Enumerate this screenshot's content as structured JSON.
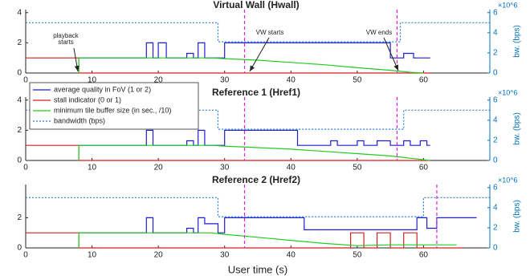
{
  "chart_data": [
    {
      "type": "line",
      "title": "Virtual Wall (Hwall)",
      "xlim": [
        0,
        70
      ],
      "xticks": [
        0,
        10,
        20,
        30,
        40,
        50,
        60
      ],
      "ylim": [
        0,
        4.2
      ],
      "yticks": [
        0,
        2,
        4
      ],
      "y2lim": [
        0,
        6300000
      ],
      "y2ticks": [
        0,
        {
          "value": 2000000,
          "label": "2"
        },
        {
          "value": 4000000,
          "label": "4"
        },
        {
          "value": 6000000,
          "label": "6"
        }
      ],
      "y2label": "bw. (bps)",
      "y2_exponent": "×10^6",
      "vlines": [
        33,
        56
      ],
      "vline_color": "#e020e0",
      "annotations": [
        {
          "lines": [
            "playback",
            "starts"
          ]
        },
        {
          "lines": [
            "VW starts"
          ]
        },
        {
          "lines": [
            "VW ends"
          ]
        }
      ],
      "series": [
        {
          "color": "#1f1fd0",
          "x": [
            8,
            18.2,
            18.2,
            19.2,
            19.2,
            20,
            20,
            21.2,
            21.2,
            24.3,
            24.3,
            25.3,
            25.3,
            26,
            26,
            27,
            27,
            30,
            30,
            55,
            55,
            57,
            57,
            58.5,
            58.5,
            61
          ],
          "values": [
            1,
            1,
            2,
            2,
            1,
            1,
            2,
            2,
            1,
            1,
            1.3,
            1.3,
            1,
            1,
            2,
            2,
            1,
            1,
            2,
            2,
            1,
            1,
            1.3,
            1.3,
            1,
            1
          ]
        },
        {
          "color": "#d42020",
          "x": [
            0,
            8,
            8,
            61
          ],
          "values": [
            1,
            1,
            0,
            0
          ]
        },
        {
          "color": "#22cc22",
          "x": [
            8,
            8,
            28,
            30,
            35,
            40,
            45,
            50,
            55,
            58,
            60
          ],
          "values": [
            0,
            1,
            1,
            0.95,
            0.85,
            0.7,
            0.55,
            0.35,
            0.18,
            0.05,
            0
          ]
        },
        {
          "color": "#2a7fd4",
          "dash": "2,2",
          "axis": "y2",
          "x": [
            0,
            29,
            29,
            56.5,
            56.5,
            70
          ],
          "values": [
            5000000,
            5000000,
            3100000,
            3100000,
            5000000,
            5000000
          ]
        }
      ]
    },
    {
      "type": "line",
      "title": "Reference 1 (Href1)",
      "xlim": [
        0,
        70
      ],
      "xticks": [
        0,
        10,
        20,
        30,
        40,
        50,
        60
      ],
      "ylim": [
        0,
        4.2
      ],
      "yticks": [
        0,
        2,
        4
      ],
      "y2lim": [
        0,
        6300000
      ],
      "y2ticks": [
        0,
        {
          "value": 2000000,
          "label": "2"
        },
        {
          "value": 4000000,
          "label": "4"
        },
        {
          "value": 6000000,
          "label": "6"
        }
      ],
      "y2label": "bw. (bps)",
      "y2_exponent": "×10^6",
      "vlines": [
        33,
        56
      ],
      "vline_color": "#e020e0",
      "legend": "upper left",
      "series": [
        {
          "name": "average quality in FoV (1 or 2)",
          "color": "#1f1fd0",
          "x": [
            8,
            18.2,
            18.2,
            19.2,
            19.2,
            24.3,
            24.3,
            25.3,
            25.3,
            26,
            26,
            27,
            27,
            30,
            30,
            41,
            41,
            46,
            46,
            47,
            47,
            50,
            50,
            51,
            51,
            53,
            53,
            55,
            55,
            57,
            57,
            58,
            58,
            59.5,
            59.5,
            60.5,
            60.5,
            61
          ],
          "values": [
            1,
            1,
            2,
            2,
            1,
            1,
            1.3,
            1.3,
            1,
            1,
            2,
            2,
            1,
            1,
            2,
            2,
            1,
            1,
            1.3,
            1.3,
            1,
            1,
            1.3,
            1.3,
            1,
            1,
            1.3,
            1.3,
            1,
            1,
            1.3,
            1.3,
            1,
            1,
            1.3,
            1.3,
            1,
            1
          ]
        },
        {
          "name": "stall indicator (0 or 1)",
          "color": "#d42020",
          "x": [
            0,
            8,
            8,
            61
          ],
          "values": [
            1,
            1,
            0,
            0
          ]
        },
        {
          "name": "minimum tile buffer size (in sec., /10)",
          "color": "#22cc22",
          "x": [
            8,
            8,
            28,
            30,
            35,
            40,
            45,
            50,
            55,
            58,
            61
          ],
          "values": [
            0,
            1,
            1,
            0.95,
            0.85,
            0.75,
            0.6,
            0.45,
            0.3,
            0.15,
            0
          ]
        },
        {
          "name": "bandwidth (bps)",
          "color": "#2a7fd4",
          "dash": "2,2",
          "axis": "y2",
          "x": [
            0,
            29,
            29,
            57,
            57,
            70
          ],
          "values": [
            5000000,
            5000000,
            3100000,
            3100000,
            5000000,
            5000000
          ]
        }
      ]
    },
    {
      "type": "line",
      "title": "Reference 2 (Href2)",
      "xlabel": "User time (s)",
      "xlim": [
        0,
        70
      ],
      "xticks": [
        0,
        10,
        20,
        30,
        40,
        50,
        60
      ],
      "ylim": [
        0,
        4.2
      ],
      "yticks": [
        0,
        2
      ],
      "y2lim": [
        0,
        6300000
      ],
      "y2ticks": [
        0,
        {
          "value": 2000000,
          "label": "2"
        },
        {
          "value": 4000000,
          "label": "4"
        },
        {
          "value": 6000000,
          "label": "6"
        }
      ],
      "y2label": "bw. (bps)",
      "y2_exponent": "×10^6",
      "vlines": [
        33,
        62
      ],
      "vline_color": "#e020e0",
      "series": [
        {
          "color": "#1f1fd0",
          "x": [
            8,
            18.2,
            18.2,
            19.2,
            19.2,
            24.3,
            24.3,
            25.3,
            25.3,
            26,
            26,
            27,
            27,
            29,
            29,
            30,
            30,
            42,
            42,
            59,
            59,
            60.5,
            60.5,
            62,
            62,
            68
          ],
          "values": [
            1,
            1,
            2,
            2,
            1,
            1,
            1.3,
            1.3,
            1,
            1,
            2,
            2,
            1.6,
            1.6,
            1,
            1,
            2,
            2,
            1.2,
            1.2,
            2,
            2,
            1.3,
            1.3,
            2,
            2
          ]
        },
        {
          "color": "#d42020",
          "x": [
            0,
            8,
            8,
            49,
            49,
            51,
            51,
            53,
            53,
            55,
            55,
            57,
            57,
            59,
            59,
            66
          ],
          "values": [
            1,
            1,
            0,
            0,
            1,
            1,
            0,
            0,
            1,
            1,
            0,
            0,
            1,
            1,
            0,
            0
          ]
        },
        {
          "color": "#22cc22",
          "x": [
            8,
            8,
            28,
            30,
            35,
            40,
            45,
            50,
            55,
            60,
            65
          ],
          "values": [
            0,
            1,
            1,
            0.9,
            0.7,
            0.5,
            0.3,
            0.15,
            0.2,
            0.2,
            0.2
          ]
        },
        {
          "color": "#2a7fd4",
          "dash": "2,2",
          "axis": "y2",
          "x": [
            0,
            29,
            29,
            60,
            60,
            70
          ],
          "values": [
            5000000,
            5000000,
            3100000,
            3100000,
            5000000,
            5000000
          ]
        }
      ]
    }
  ]
}
